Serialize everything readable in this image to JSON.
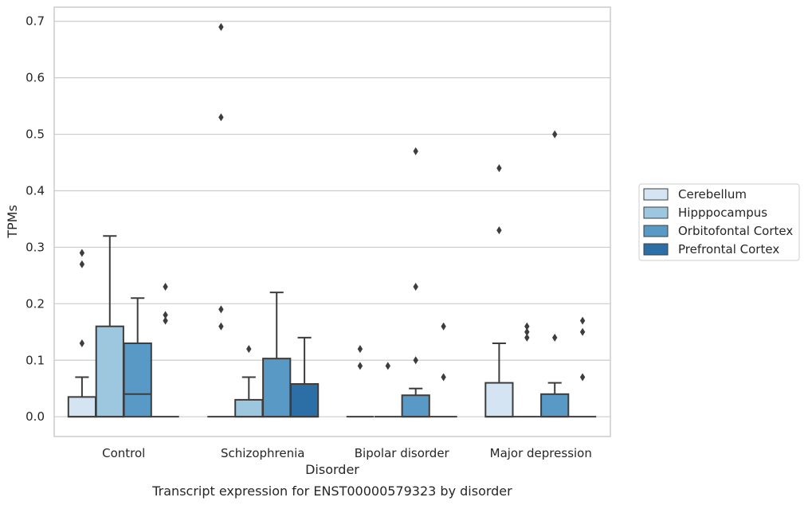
{
  "chart_data": {
    "type": "box",
    "ylabel": "TPMs",
    "xlabel": "Disorder",
    "caption": "Transcript expression for ENST00000579323 by disorder",
    "ylim": [
      -0.035,
      0.725
    ],
    "yticks": [
      "0.0",
      "0.1",
      "0.2",
      "0.3",
      "0.4",
      "0.5",
      "0.6",
      "0.7"
    ],
    "grid": true,
    "legend_position": "right",
    "categories": [
      "Control",
      "Schizophrenia",
      "Bipolar disorder",
      "Major depression"
    ],
    "series": [
      {
        "name": "Cerebellum",
        "color": "#d4e4f3",
        "boxes": [
          {
            "q1": 0,
            "median": 0,
            "q3": 0.035,
            "whisker_low": 0,
            "whisker_high": 0.07,
            "outliers": [
              0.13,
              0.27,
              0.29
            ]
          },
          {
            "q1": 0,
            "median": 0,
            "q3": 0,
            "whisker_low": 0,
            "whisker_high": 0,
            "outliers": [
              0.16,
              0.19,
              0.53,
              0.69
            ]
          },
          {
            "q1": 0,
            "median": 0,
            "q3": 0,
            "whisker_low": 0,
            "whisker_high": 0,
            "outliers": [
              0.09,
              0.12
            ]
          },
          {
            "q1": 0,
            "median": 0,
            "q3": 0.06,
            "whisker_low": 0,
            "whisker_high": 0.13,
            "outliers": [
              0.33,
              0.44
            ]
          }
        ]
      },
      {
        "name": "Hipppocampus",
        "color": "#9dc6df",
        "boxes": [
          {
            "q1": 0,
            "median": 0,
            "q3": 0.16,
            "whisker_low": 0,
            "whisker_high": 0.32,
            "outliers": []
          },
          {
            "q1": 0,
            "median": 0,
            "q3": 0.03,
            "whisker_low": 0,
            "whisker_high": 0.07,
            "outliers": [
              0.12
            ]
          },
          {
            "q1": 0,
            "median": 0,
            "q3": 0,
            "whisker_low": 0,
            "whisker_high": 0,
            "outliers": [
              0.09
            ]
          },
          {
            "q1": 0,
            "median": 0,
            "q3": 0,
            "whisker_low": 0,
            "whisker_high": 0,
            "outliers": [
              0.14,
              0.15,
              0.16
            ]
          }
        ]
      },
      {
        "name": "Orbitofontal Cortex",
        "color": "#5899c6",
        "boxes": [
          {
            "q1": 0,
            "median": 0.04,
            "q3": 0.13,
            "whisker_low": 0,
            "whisker_high": 0.21,
            "outliers": []
          },
          {
            "q1": 0,
            "median": 0,
            "q3": 0.103,
            "whisker_low": 0,
            "whisker_high": 0.22,
            "outliers": []
          },
          {
            "q1": 0,
            "median": 0,
            "q3": 0.038,
            "whisker_low": 0,
            "whisker_high": 0.05,
            "outliers": [
              0.1,
              0.23,
              0.47
            ]
          },
          {
            "q1": 0,
            "median": 0,
            "q3": 0.04,
            "whisker_low": 0,
            "whisker_high": 0.06,
            "outliers": [
              0.14,
              0.5
            ]
          }
        ]
      },
      {
        "name": "Prefrontal Cortex",
        "color": "#2c6ea6",
        "boxes": [
          {
            "q1": 0,
            "median": 0,
            "q3": 0,
            "whisker_low": 0,
            "whisker_high": 0,
            "outliers": [
              0.17,
              0.18,
              0.23
            ]
          },
          {
            "q1": 0,
            "median": 0,
            "q3": 0.058,
            "whisker_low": 0,
            "whisker_high": 0.14,
            "outliers": []
          },
          {
            "q1": 0,
            "median": 0,
            "q3": 0,
            "whisker_low": 0,
            "whisker_high": 0,
            "outliers": [
              0.07,
              0.16
            ]
          },
          {
            "q1": 0,
            "median": 0,
            "q3": 0,
            "whisker_low": 0,
            "whisker_high": 0,
            "outliers": [
              0.07,
              0.15,
              0.17
            ]
          }
        ]
      }
    ]
  }
}
